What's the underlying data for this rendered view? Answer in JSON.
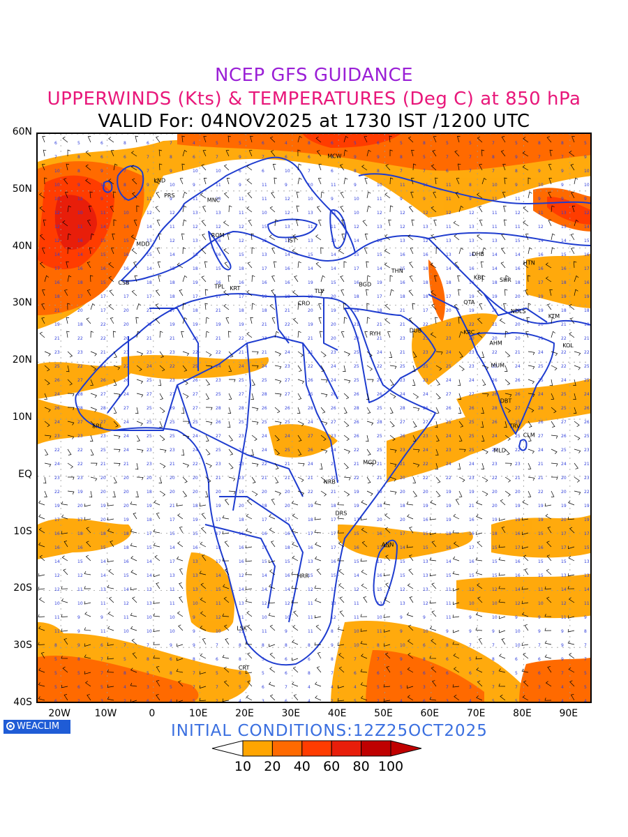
{
  "titles": {
    "line1": "NCEP GFS GUIDANCE",
    "line2": "UPPERWINDS (Kts) & TEMPERATURES (Deg C) at 850 hPa",
    "line3": "VALID For: 04NOV2025 at 1730 IST /1200 UTC"
  },
  "map": {
    "lon_range": [
      -25,
      95
    ],
    "lat_range": [
      -40,
      60
    ],
    "lat_labels": [
      {
        "lat": 60,
        "text": "60N"
      },
      {
        "lat": 50,
        "text": "50N"
      },
      {
        "lat": 40,
        "text": "40N"
      },
      {
        "lat": 30,
        "text": "30N"
      },
      {
        "lat": 20,
        "text": "20N"
      },
      {
        "lat": 10,
        "text": "10N"
      },
      {
        "lat": 0,
        "text": "EQ"
      },
      {
        "lat": -10,
        "text": "10S"
      },
      {
        "lat": -20,
        "text": "20S"
      },
      {
        "lat": -30,
        "text": "30S"
      },
      {
        "lat": -40,
        "text": "40S"
      }
    ],
    "lon_labels": [
      {
        "lon": -20,
        "text": "20W"
      },
      {
        "lon": -10,
        "text": "10W"
      },
      {
        "lon": 0,
        "text": "0"
      },
      {
        "lon": 10,
        "text": "10E"
      },
      {
        "lon": 20,
        "text": "20E"
      },
      {
        "lon": 30,
        "text": "30E"
      },
      {
        "lon": 40,
        "text": "40E"
      },
      {
        "lon": 50,
        "text": "50E"
      },
      {
        "lon": 60,
        "text": "60E"
      },
      {
        "lon": 70,
        "text": "70E"
      },
      {
        "lon": 80,
        "text": "80E"
      },
      {
        "lon": 90,
        "text": "90E"
      }
    ],
    "cities": [
      {
        "name": "MCW",
        "lon": 37.6,
        "lat": 55.8
      },
      {
        "name": "LND",
        "lon": 0.1,
        "lat": 51.5
      },
      {
        "name": "PRS",
        "lon": 2.3,
        "lat": 48.9
      },
      {
        "name": "MNC",
        "lon": 11.6,
        "lat": 48.1
      },
      {
        "name": "ROM",
        "lon": 12.5,
        "lat": 41.9
      },
      {
        "name": "MDD",
        "lon": -3.7,
        "lat": 40.4
      },
      {
        "name": "IST",
        "lon": 29.0,
        "lat": 41.0
      },
      {
        "name": "CSB",
        "lon": -7.6,
        "lat": 33.6
      },
      {
        "name": "TPL",
        "lon": 13.2,
        "lat": 32.9
      },
      {
        "name": "KRT",
        "lon": 16.5,
        "lat": 32.6
      },
      {
        "name": "CRO",
        "lon": 31.2,
        "lat": 30.0
      },
      {
        "name": "TLV",
        "lon": 34.8,
        "lat": 32.1
      },
      {
        "name": "BGD",
        "lon": 44.4,
        "lat": 33.3
      },
      {
        "name": "THN",
        "lon": 51.4,
        "lat": 35.7
      },
      {
        "name": "DHB",
        "lon": 68.8,
        "lat": 38.6
      },
      {
        "name": "KBL",
        "lon": 69.2,
        "lat": 34.5
      },
      {
        "name": "HTN",
        "lon": 79.9,
        "lat": 37.1
      },
      {
        "name": "SHR",
        "lon": 74.8,
        "lat": 34.1
      },
      {
        "name": "QTA",
        "lon": 67.0,
        "lat": 30.2
      },
      {
        "name": "NDLS",
        "lon": 77.2,
        "lat": 28.6
      },
      {
        "name": "KTM",
        "lon": 85.3,
        "lat": 27.7
      },
      {
        "name": "RYH",
        "lon": 46.7,
        "lat": 24.7
      },
      {
        "name": "DUB",
        "lon": 55.3,
        "lat": 25.2
      },
      {
        "name": "KRC",
        "lon": 67.0,
        "lat": 24.9
      },
      {
        "name": "AHM",
        "lon": 72.6,
        "lat": 23.0
      },
      {
        "name": "KOL",
        "lon": 88.4,
        "lat": 22.6
      },
      {
        "name": "MUM",
        "lon": 72.9,
        "lat": 19.1
      },
      {
        "name": "DBT",
        "lon": 74.9,
        "lat": 12.9
      },
      {
        "name": "TRV",
        "lon": 76.9,
        "lat": 8.5
      },
      {
        "name": "CLM",
        "lon": 79.9,
        "lat": 6.9
      },
      {
        "name": "SRL",
        "lon": -13.2,
        "lat": 8.5
      },
      {
        "name": "MGD",
        "lon": 45.3,
        "lat": 2.1
      },
      {
        "name": "MLD",
        "lon": 73.5,
        "lat": 4.2
      },
      {
        "name": "NRB",
        "lon": 36.8,
        "lat": -1.3
      },
      {
        "name": "DRS",
        "lon": 39.3,
        "lat": -6.8
      },
      {
        "name": "ANN",
        "lon": 49.3,
        "lat": -12.3
      },
      {
        "name": "HRR",
        "lon": 31.0,
        "lat": -17.8
      },
      {
        "name": "LSK",
        "lon": 18.0,
        "lat": -27.0
      },
      {
        "name": "CRT",
        "lon": 18.4,
        "lat": -33.9
      }
    ]
  },
  "init_conditions": "INITIAL CONDITIONS:12Z25OCT2025",
  "logo": "WEACLIM",
  "colorbar": {
    "colors": [
      "#ffa500",
      "#ff6a00",
      "#ff3c00",
      "#e81e0a",
      "#bf0000"
    ],
    "labels": [
      "10",
      "20",
      "40",
      "60",
      "80",
      "100"
    ]
  },
  "colors": {
    "land_outline": "#1e3ccf",
    "wind_10_20": "#ffa500",
    "wind_20_40": "#ff6a00",
    "wind_40_60": "#ff3c00",
    "wind_60_80": "#e81e0a",
    "wind_80_100": "#bf0000",
    "temperature_text": "#2e3ddb",
    "barb": "#000000"
  }
}
